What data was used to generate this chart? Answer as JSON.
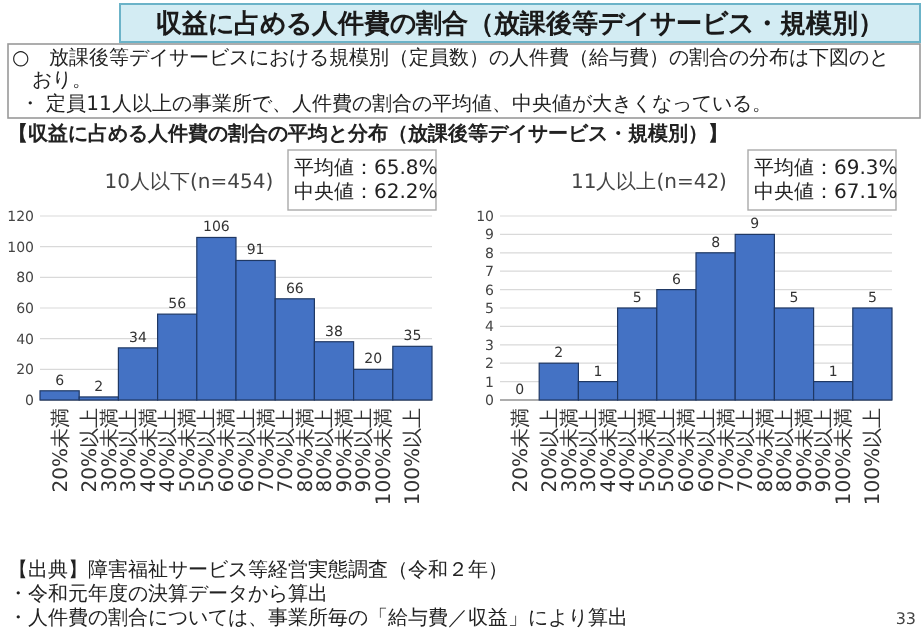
{
  "chart_data": [
    {
      "type": "other",
      "title": "収益に占める人件費の割合（放課後等デイサービス・規模別）",
      "annotations": [
        "○　放課後等デイサービスにおける規模別（定員数）の人件費（給与費）の割合の分布は下図のとおり。",
        "・ 定員11人以上の事業所で、人件費の割合の平均値、中央値が大きくなっている。",
        "【収益に占める人件費の割合の平均と分布（放課後等デイサービス・規模別）】",
        "【出典】障害福祉サービス等経営実態調査（令和２年）",
        "・令和元年度の決算データから算出",
        "・人件費の割合については、事業所毎の「給与費／収益」により算出",
        "33"
      ]
    },
    {
      "type": "bar",
      "title": "10人以下(n=454)",
      "categories": [
        "20%未満",
        "20%以上\n30%未満",
        "30%以上\n40%未満",
        "40%以上\n50%未満",
        "50%以上\n60%未満",
        "60%以上\n70%未満",
        "70%以上\n80%未満",
        "80%以上\n90%未満",
        "90%以上\n100%未満",
        "100%以上"
      ],
      "values": [
        6,
        2,
        34,
        56,
        106,
        91,
        66,
        38,
        20,
        35
      ],
      "color": "#4472c4",
      "ylim": [
        0,
        120
      ],
      "yticks": [
        0,
        20,
        40,
        60,
        80,
        100,
        120
      ],
      "grid": "y",
      "data_labels": true,
      "annotations": [
        "平均値：65.8%",
        "中央値：62.2%"
      ]
    },
    {
      "type": "bar",
      "title": "11人以上(n=42)",
      "categories": [
        "20%未満",
        "20%以上\n30%未満",
        "30%以上\n40%未満",
        "40%以上\n50%未満",
        "50%以上\n60%未満",
        "60%以上\n70%未満",
        "70%以上\n80%未満",
        "80%以上\n90%未満",
        "90%以上\n100%未満",
        "100%以上"
      ],
      "values": [
        0,
        2,
        1,
        5,
        6,
        8,
        9,
        5,
        1,
        5
      ],
      "color": "#4472c4",
      "ylim": [
        0,
        10
      ],
      "yticks": [
        0,
        1,
        2,
        3,
        4,
        5,
        6,
        7,
        8,
        9,
        10
      ],
      "grid": "y",
      "data_labels": true,
      "annotations": [
        "平均値：69.3%",
        "中央値：67.1%"
      ]
    }
  ]
}
